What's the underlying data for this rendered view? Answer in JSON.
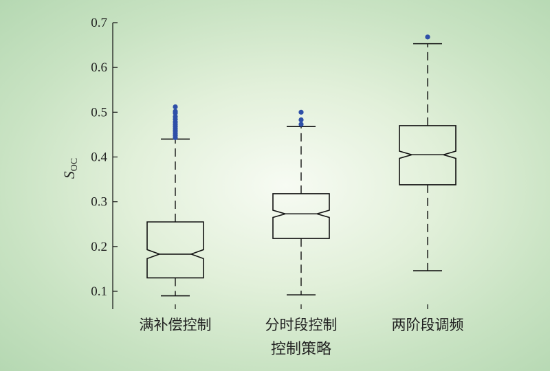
{
  "chart_data": {
    "type": "boxplot",
    "notched": true,
    "categories": [
      "满补偿控制",
      "分时段控制",
      "两阶段调频"
    ],
    "xlabel": "控制策略",
    "ylabel_main": "S",
    "ylabel_sub": "OC",
    "ylim": [
      0.07,
      0.7
    ],
    "yticks": [
      0.1,
      0.2,
      0.3,
      0.4,
      0.5,
      0.6,
      0.7
    ],
    "grid": false,
    "outlier_color": "#2e4fa8",
    "boxes": [
      {
        "category": "满补偿控制",
        "whisker_low": 0.09,
        "q1": 0.13,
        "median": 0.183,
        "q3": 0.255,
        "whisker_high": 0.44,
        "notch_low": 0.173,
        "notch_high": 0.193,
        "outliers": [
          0.443,
          0.448,
          0.453,
          0.458,
          0.463,
          0.468,
          0.473,
          0.478,
          0.484,
          0.49,
          0.498,
          0.502,
          0.512
        ]
      },
      {
        "category": "分时段控制",
        "whisker_low": 0.092,
        "q1": 0.218,
        "median": 0.273,
        "q3": 0.318,
        "whisker_high": 0.468,
        "notch_low": 0.265,
        "notch_high": 0.281,
        "outliers": [
          0.473,
          0.483,
          0.5
        ]
      },
      {
        "category": "两阶段调频",
        "whisker_low": 0.146,
        "q1": 0.338,
        "median": 0.405,
        "q3": 0.47,
        "whisker_high": 0.653,
        "notch_low": 0.397,
        "notch_high": 0.413,
        "outliers": [
          0.668
        ]
      }
    ]
  }
}
